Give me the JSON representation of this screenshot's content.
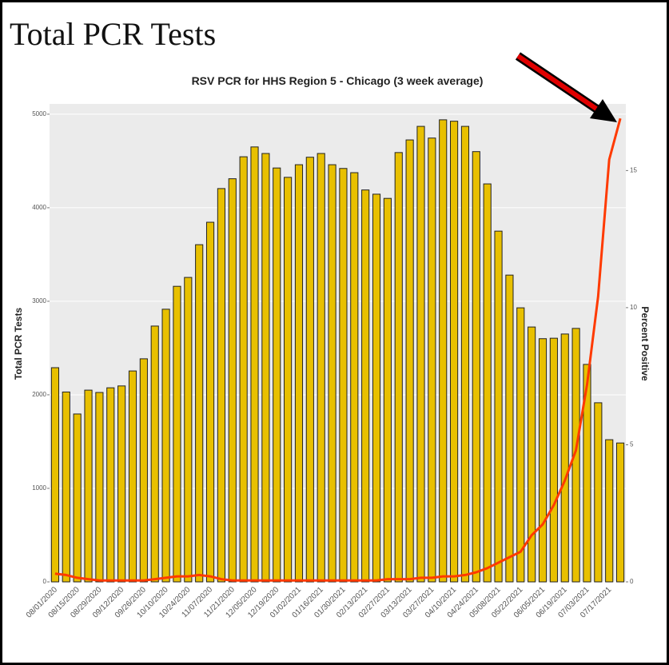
{
  "chart_data": {
    "type": "bar",
    "heading": "Total PCR Tests",
    "title": "RSV PCR for HHS Region 5 - Chicago (3 week average)",
    "ylabel": "Total PCR Tests",
    "y2label": "Percent Positive",
    "categories": [
      "08/01/2020",
      null,
      "08/15/2020",
      null,
      "08/29/2020",
      null,
      "09/12/2020",
      null,
      "09/26/2020",
      null,
      "10/10/2020",
      null,
      "10/24/2020",
      null,
      "11/07/2020",
      null,
      "11/21/2020",
      null,
      "12/05/2020",
      null,
      "12/19/2020",
      null,
      "01/02/2021",
      null,
      "01/16/2021",
      null,
      "01/30/2021",
      null,
      "02/13/2021",
      null,
      "02/27/2021",
      null,
      "03/13/2021",
      null,
      "03/27/2021",
      null,
      "04/10/2021",
      null,
      "04/24/2021",
      null,
      "05/08/2021",
      null,
      "05/22/2021",
      null,
      "06/05/2021",
      null,
      "06/19/2021",
      null,
      "07/03/2021",
      null,
      "07/17/2021",
      null
    ],
    "series": [
      {
        "color": "#e8c000",
        "values": [
          2290,
          2030,
          1795,
          2050,
          2025,
          2075,
          2095,
          2255,
          2385,
          2735,
          2915,
          3160,
          3255,
          3605,
          3845,
          4205,
          4310,
          4545,
          4650,
          4580,
          4425,
          4325,
          4460,
          4540,
          4580,
          4460,
          4420,
          4375,
          4190,
          4145,
          4100,
          4590,
          4725,
          4870,
          4745,
          4940,
          4925,
          4870,
          4600,
          4255,
          3750,
          3280,
          2930,
          2725,
          2600,
          2605,
          2650,
          2710,
          2325,
          1915,
          1520,
          1485
        ]
      },
      {
        "type": "line",
        "axis": "y2",
        "color": "#ff3a00",
        "values": [
          0.3,
          0.25,
          0.15,
          0.1,
          0.05,
          0.05,
          0.05,
          0.05,
          0.05,
          0.1,
          0.15,
          0.2,
          0.2,
          0.25,
          0.2,
          0.1,
          0.05,
          0.05,
          0.05,
          0.05,
          0.05,
          0.05,
          0.05,
          0.05,
          0.05,
          0.05,
          0.05,
          0.05,
          0.05,
          0.05,
          0.1,
          0.1,
          0.1,
          0.15,
          0.15,
          0.2,
          0.2,
          0.25,
          0.35,
          0.5,
          0.7,
          0.9,
          1.1,
          1.7,
          2.1,
          2.8,
          3.7,
          4.8,
          7.2,
          10.4,
          15.4,
          16.9
        ]
      }
    ],
    "ylim": [
      0,
      5110
    ],
    "yticks": [
      0,
      1000,
      2000,
      3000,
      4000,
      5000
    ],
    "y2lim": [
      0,
      17.43
    ],
    "y2ticks": [
      0,
      5,
      10,
      15
    ],
    "grid": true
  }
}
